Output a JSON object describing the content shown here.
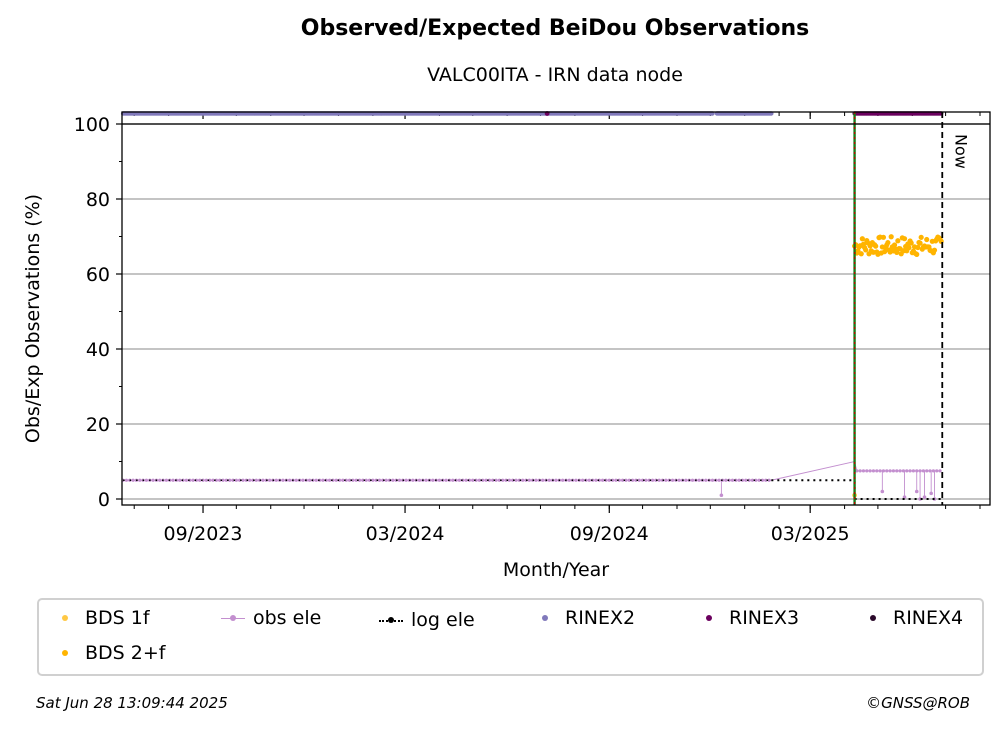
{
  "header": {
    "title": "Observed/Expected BeiDou Observations",
    "subtitle": "VALC00ITA - IRN data node"
  },
  "footer": {
    "timestamp": "Sat Jun 28 13:09:44 2025",
    "copyright": "©GNSS@ROB"
  },
  "legend": [
    {
      "label": "BDS 1f",
      "color": "#ffc844",
      "style": "dot"
    },
    {
      "label": "obs ele",
      "color": "#c38fcf",
      "style": "line-dot"
    },
    {
      "label": "log ele",
      "color": "#000000",
      "style": "dotted-line"
    },
    {
      "label": "RINEX2",
      "color": "#8079bb",
      "style": "dot"
    },
    {
      "label": "RINEX3",
      "color": "#6b005e",
      "style": "dot"
    },
    {
      "label": "RINEX4",
      "color": "#2b0a2b",
      "style": "dot"
    },
    {
      "label": "BDS 2+f",
      "color": "#ffb400",
      "style": "dot"
    }
  ],
  "chart_data": {
    "type": "scatter",
    "title": "Observed/Expected BeiDou Observations",
    "subtitle": "VALC00ITA - IRN data node",
    "xlabel": "Month/Year",
    "ylabel": "Obs/Exp Observations (%)",
    "ylim": [
      0,
      100
    ],
    "yticks": [
      0,
      20,
      40,
      60,
      80,
      100
    ],
    "xlim": [
      "2023-06-20",
      "2025-08-10"
    ],
    "xticks": [
      {
        "date": "2023-09-01",
        "label": "09/2023"
      },
      {
        "date": "2024-03-01",
        "label": "03/2024"
      },
      {
        "date": "2024-09-01",
        "label": "09/2024"
      },
      {
        "date": "2025-03-01",
        "label": "03/2025"
      }
    ],
    "grid": "horizontal",
    "now_label": "Now",
    "now_date": "2025-06-28",
    "rinex_change_date": "2025-04-10",
    "series": [
      {
        "name": "RINEX2",
        "color": "#8079bb",
        "kind": "availability",
        "y": 102,
        "ranges": [
          [
            "2023-06-21",
            "2024-12-03"
          ],
          [
            "2024-12-07",
            "2025-01-25"
          ]
        ]
      },
      {
        "name": "RINEX3",
        "color": "#6b005e",
        "kind": "availability",
        "y": 102,
        "ranges": [
          [
            "2025-04-10",
            "2025-06-27"
          ]
        ],
        "points": [
          "2024-07-07"
        ]
      },
      {
        "name": "obs ele",
        "color": "#c38fcf",
        "kind": "line",
        "baseline": [
          [
            "2023-06-21",
            5
          ],
          [
            "2025-01-25",
            5
          ],
          [
            "2025-04-10",
            10
          ],
          [
            "2025-04-12",
            7.5
          ],
          [
            "2025-06-27",
            7.5
          ]
        ],
        "dips": [
          [
            "2024-12-11",
            1
          ],
          [
            "2025-05-05",
            2
          ],
          [
            "2025-05-25",
            0.5
          ],
          [
            "2025-06-05",
            2
          ],
          [
            "2025-06-08",
            0
          ],
          [
            "2025-06-12",
            0.5
          ],
          [
            "2025-06-18",
            1.5
          ],
          [
            "2025-06-21",
            0
          ]
        ]
      },
      {
        "name": "log ele",
        "color": "#000000",
        "kind": "step",
        "points": [
          [
            "2025-01-25",
            5
          ],
          [
            "2025-04-10",
            5
          ],
          [
            "2025-04-10",
            0
          ],
          [
            "2025-06-28",
            0
          ]
        ]
      },
      {
        "name": "BDS 2+f",
        "color": "#ffb400",
        "kind": "scatter",
        "start": "2025-04-10",
        "end": "2025-06-27",
        "range": [
          64,
          70
        ]
      },
      {
        "name": "BDS 1f",
        "color": "#ffc844",
        "kind": "scatter",
        "points": [
          [
            "2025-04-10",
            1
          ]
        ]
      }
    ]
  }
}
